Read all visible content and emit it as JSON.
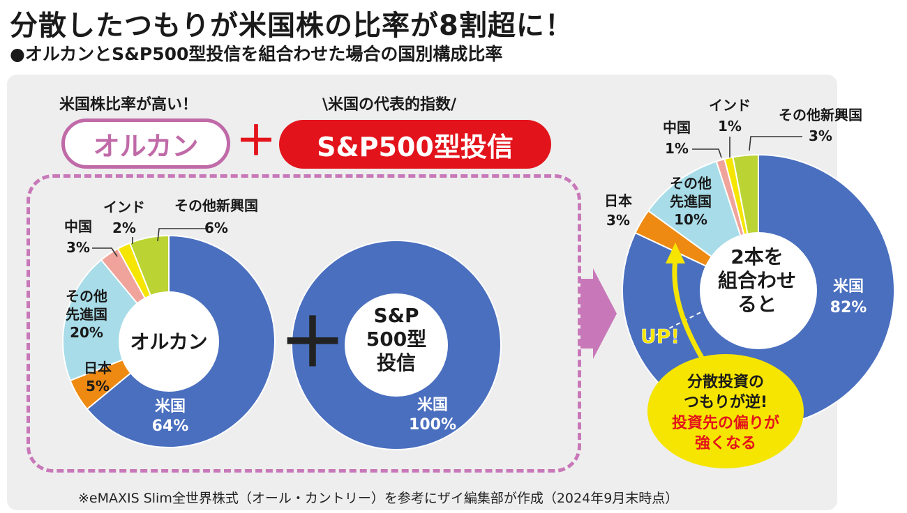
{
  "title": "分散したつもりが米国株の比率が8割超に！",
  "subtitle": "●オルカンとS&P500型投信を組合わせた場合の国別構成比率",
  "top": {
    "note_left": "米国株比率が高い！",
    "note_right": "\\米国の代表的指数/",
    "pill_left": "オルカン",
    "plus": "＋",
    "pill_right": "S&P500型投信"
  },
  "plus_mid": "＋",
  "footnote": "※eMAXIS Slim全世界株式（オール・カントリー）を参考にザイ編集部が作成（2024年9月末時点）",
  "colors": {
    "usa": "#4a6fbf",
    "japan": "#ee8a12",
    "developed": "#a7dce8",
    "china": "#f0a39a",
    "india": "#f5e500",
    "emerging": "#bcd433",
    "accent_pink": "#c06aa8",
    "accent_red": "#e3131b",
    "arrow_yellow": "#f5e500"
  },
  "chart_data": [
    {
      "type": "pie",
      "center_label": "オルカン",
      "categories": [
        "米国",
        "日本",
        "その他先進国",
        "中国",
        "インド",
        "その他新興国"
      ],
      "values": [
        64,
        5,
        20,
        3,
        2,
        6
      ],
      "labels": [
        "64%",
        "5%",
        "20%",
        "3%",
        "2%",
        "6%"
      ]
    },
    {
      "type": "pie",
      "center_label": "S&P 500型 投信",
      "center_lines": [
        "S&P",
        "500型",
        "投信"
      ],
      "categories": [
        "米国"
      ],
      "values": [
        100
      ],
      "labels": [
        "100%"
      ]
    },
    {
      "type": "pie",
      "center_label": "2本を組合わせると",
      "center_lines": [
        "2本を",
        "組合わせ",
        "ると"
      ],
      "categories": [
        "米国",
        "日本",
        "その他先進国",
        "中国",
        "インド",
        "その他新興国"
      ],
      "values": [
        82,
        3,
        10,
        1,
        1,
        3
      ],
      "labels": [
        "82%",
        "3%",
        "10%",
        "1%",
        "1%",
        "3%"
      ]
    }
  ],
  "callout": {
    "up": "UP!",
    "line1": "分散投資の",
    "line2": "つもりが逆!",
    "line3": "投資先の偏りが",
    "line4": "強くなる"
  }
}
